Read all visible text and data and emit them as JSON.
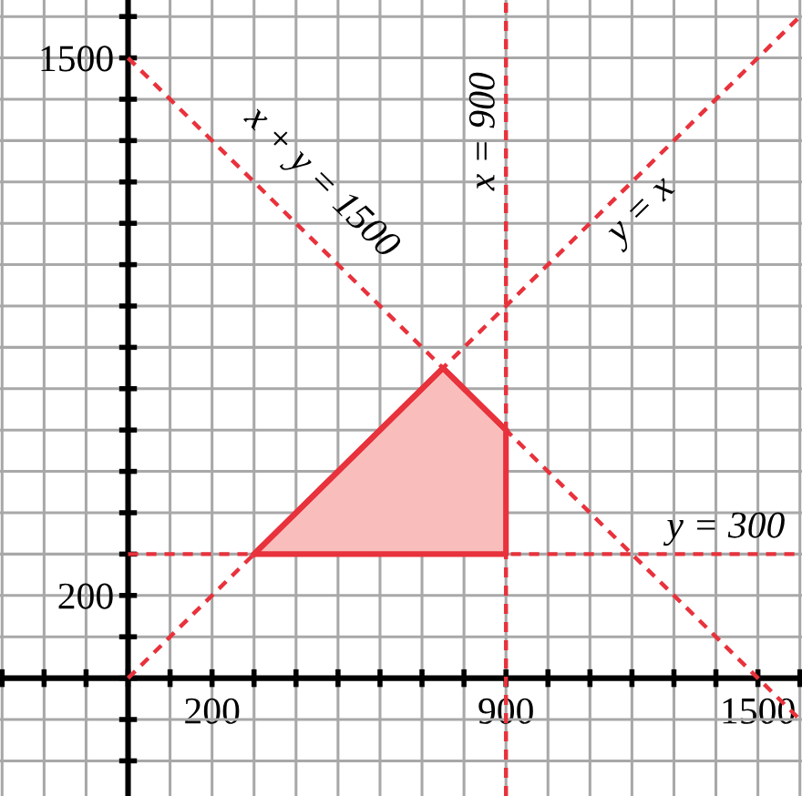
{
  "chart_data": {
    "type": "line",
    "series": [
      {
        "name": "x + y = 1500",
        "color": "#e8323c",
        "line_style": "dashed",
        "x": [
          0,
          1605
        ],
        "values": [
          1500,
          -105
        ]
      },
      {
        "name": "x = 900",
        "color": "#e8323c",
        "line_style": "dashed",
        "x": [
          900,
          900
        ],
        "values": [
          -285,
          1640
        ]
      },
      {
        "name": "y = x",
        "color": "#e8323c",
        "line_style": "dashed",
        "x": [
          0,
          1605
        ],
        "values": [
          0,
          1605
        ]
      },
      {
        "name": "y = 300",
        "color": "#e8323c",
        "line_style": "dashed",
        "x": [
          0,
          1605
        ],
        "values": [
          300,
          300
        ]
      },
      {
        "color": "#e8323c",
        "line_style": "solid",
        "x": [
          300,
          750,
          900
        ],
        "values": [
          300,
          750,
          600
        ],
        "lower": [
          300,
          300,
          300
        ],
        "upper": [
          300,
          750,
          600
        ]
      }
    ],
    "xlim": [
      -305,
      1605
    ],
    "ylim": [
      -285,
      1640
    ],
    "xticks": [
      {
        "value": -300,
        "label": null
      },
      {
        "value": -200,
        "label": null
      },
      {
        "value": -100,
        "label": null
      },
      {
        "value": 0,
        "label": null
      },
      {
        "value": 100,
        "label": null
      },
      200,
      {
        "value": 300,
        "label": null
      },
      {
        "value": 400,
        "label": null
      },
      {
        "value": 500,
        "label": null
      },
      {
        "value": 600,
        "label": null
      },
      {
        "value": 700,
        "label": null
      },
      {
        "value": 800,
        "label": null
      },
      900,
      {
        "value": 1000,
        "label": null
      },
      {
        "value": 1100,
        "label": null
      },
      {
        "value": 1200,
        "label": null
      },
      {
        "value": 1300,
        "label": null
      },
      {
        "value": 1400,
        "label": null
      },
      1500,
      {
        "value": 1600,
        "label": null
      }
    ],
    "yticks": [
      {
        "value": -200,
        "label": null
      },
      {
        "value": -100,
        "label": null
      },
      {
        "value": 0,
        "label": null
      },
      {
        "value": 100,
        "label": null
      },
      200,
      {
        "value": 300,
        "label": null
      },
      {
        "value": 400,
        "label": null
      },
      {
        "value": 500,
        "label": null
      },
      {
        "value": 600,
        "label": null
      },
      {
        "value": 700,
        "label": null
      },
      {
        "value": 800,
        "label": null
      },
      {
        "value": 900,
        "label": null
      },
      {
        "value": 1000,
        "label": null
      },
      {
        "value": 1100,
        "label": null
      },
      {
        "value": 1200,
        "label": null
      },
      {
        "value": 1300,
        "label": null
      },
      {
        "value": 1400,
        "label": null
      },
      1500,
      {
        "value": 1600,
        "label": null
      }
    ],
    "grid": true,
    "marker": "none"
  }
}
